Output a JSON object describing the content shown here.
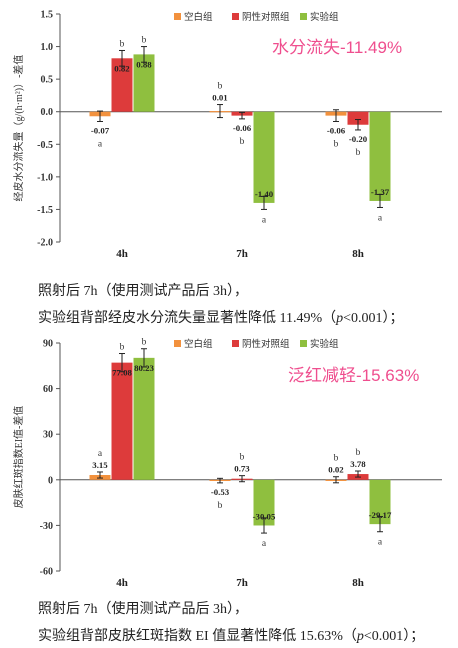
{
  "colors": {
    "blank": "#f2913d",
    "negative": "#dd3b3b",
    "experiment": "#8fbf3f",
    "highlight": "#ef4e8e"
  },
  "chart_data": [
    {
      "type": "bar",
      "ylabel": "经皮水分流失量（g/(h·m²)）-差值",
      "legend": [
        "空白组",
        "阴性对照组",
        "实验组"
      ],
      "legend_position": "top-right",
      "categories": [
        "4h",
        "7h",
        "8h"
      ],
      "ylim": [
        -2.0,
        1.5
      ],
      "yticks": [
        "1.5",
        "1.0",
        "0.5",
        "0.0",
        "-0.5",
        "-1.0",
        "-1.5",
        "-2.0"
      ],
      "ytick_values": [
        1.5,
        1.0,
        0.5,
        0.0,
        -0.5,
        -1.0,
        -1.5,
        -2.0
      ],
      "series": [
        {
          "name": "空白组",
          "values": [
            -0.07,
            0.01,
            -0.06
          ],
          "labels": [
            "-0.07",
            "0.01",
            "-0.06"
          ],
          "errors": [
            0.08,
            0.1,
            0.09
          ],
          "letters": [
            "a",
            "b",
            "b"
          ]
        },
        {
          "name": "阴性对照组",
          "values": [
            0.82,
            -0.06,
            -0.2
          ],
          "labels": [
            "0.82",
            "-0.06",
            "-0.20"
          ],
          "errors": [
            0.12,
            0.05,
            0.08
          ],
          "letters": [
            "b",
            "b",
            "b"
          ]
        },
        {
          "name": "实验组",
          "values": [
            0.88,
            -1.4,
            -1.37
          ],
          "labels": [
            "0.88",
            "-1.40",
            "-1.37"
          ],
          "errors": [
            0.12,
            0.1,
            0.1
          ],
          "letters": [
            "b",
            "a",
            "a"
          ]
        }
      ],
      "annotation": "水分流失-11.49%",
      "caption_line1": "照射后 7h（使用测试产品后 3h），",
      "caption_line2_pre": "实验组背部经皮水分流失量显著性降低 11.49%（",
      "caption_line2_p": "p",
      "caption_line2_post": "<0.001）；"
    },
    {
      "type": "bar",
      "ylabel": "皮肤红斑指数EI值-差值",
      "legend": [
        "空白组",
        "阴性对照组",
        "实验组"
      ],
      "legend_position": "top-right",
      "categories": [
        "4h",
        "7h",
        "8h"
      ],
      "ylim": [
        -60,
        90
      ],
      "yticks": [
        "90",
        "60",
        "30",
        "0",
        "-30",
        "-60"
      ],
      "ytick_values": [
        90,
        60,
        30,
        0,
        -30,
        -60
      ],
      "series": [
        {
          "name": "空白组",
          "values": [
            3.15,
            -0.53,
            0.02
          ],
          "labels": [
            "3.15",
            "-0.53",
            "0.02"
          ],
          "errors": [
            2,
            1.5,
            2
          ],
          "letters": [
            "a",
            "b",
            "b"
          ]
        },
        {
          "name": "阴性对照组",
          "values": [
            77.08,
            0.73,
            3.78
          ],
          "labels": [
            "77.08",
            "0.73",
            "3.78"
          ],
          "errors": [
            6,
            2,
            2
          ],
          "letters": [
            "b",
            "b",
            "b"
          ]
        },
        {
          "name": "实验组",
          "values": [
            80.23,
            -30.05,
            -29.17
          ],
          "labels": [
            "80.23",
            "-30.05",
            "-29.17"
          ],
          "errors": [
            6,
            5,
            5
          ],
          "letters": [
            "b",
            "a",
            "a"
          ]
        }
      ],
      "annotation": "泛红减轻-15.63%",
      "caption_line1": "照射后 7h（使用测试产品后 3h），",
      "caption_line2_pre": "实验组背部皮肤红斑指数 EI 值显著性降低 15.63%（",
      "caption_line2_p": "p",
      "caption_line2_post": "<0.001）；"
    }
  ]
}
